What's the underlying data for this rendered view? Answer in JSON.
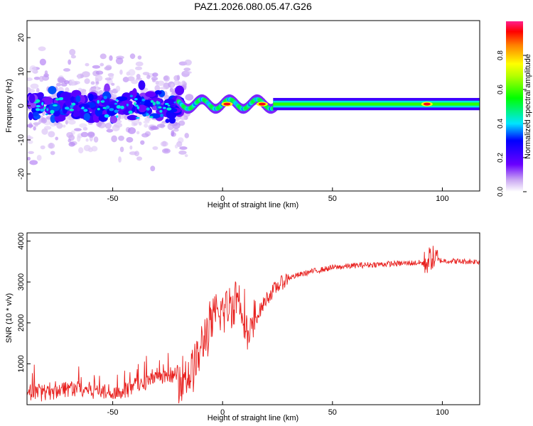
{
  "title": "PAZ1.2026.080.05.47.G26",
  "chart_data": [
    {
      "type": "heatmap",
      "xlabel": "Height of straight line (km)",
      "ylabel": "Frequency (Hz)",
      "xlim": [
        -89,
        117
      ],
      "ylim": [
        -25,
        25
      ],
      "xticks": [
        -50,
        0,
        50,
        100
      ],
      "yticks": [
        -20,
        -10,
        0,
        10,
        20
      ],
      "colorbar": {
        "label": "Normalized spectral amplitude",
        "range": [
          0,
          1
        ],
        "ticks": [
          "0.0",
          "0.2",
          "0.4",
          "0.6",
          "0.8"
        ]
      },
      "description_profile": {
        "scattered_region_x": [
          -89,
          -20
        ],
        "scattered_spread_hz": 22,
        "transition_x": [
          -20,
          25
        ],
        "stable_line_x": [
          25,
          117
        ],
        "stable_line_freq_hz": 0.5,
        "hotspots_x": [
          2,
          18,
          93
        ]
      }
    },
    {
      "type": "line",
      "xlabel": "Height of straight line (km)",
      "ylabel": "SNR (10 * v/v)",
      "xlim": [
        -89,
        117
      ],
      "ylim": [
        0,
        4200
      ],
      "xticks": [
        -50,
        0,
        50,
        100
      ],
      "yticks": [
        1000,
        2000,
        3000,
        4000
      ],
      "series": [
        {
          "name": "SNR",
          "color": "#e8211f",
          "x": [
            -89,
            -80,
            -70,
            -60,
            -50,
            -45,
            -40,
            -35,
            -30,
            -25,
            -20,
            -15,
            -10,
            -8,
            -5,
            0,
            5,
            7,
            10,
            12,
            15,
            20,
            25,
            30,
            40,
            50,
            60,
            70,
            80,
            90,
            92,
            95,
            97,
            100,
            110,
            117
          ],
          "y": [
            250,
            330,
            420,
            380,
            300,
            350,
            450,
            560,
            620,
            680,
            700,
            740,
            1300,
            1700,
            2000,
            2300,
            2500,
            2700,
            2200,
            1500,
            2100,
            2600,
            2900,
            3100,
            3250,
            3350,
            3400,
            3430,
            3450,
            3470,
            3450,
            3600,
            3550,
            3520,
            3500,
            3500
          ]
        }
      ]
    }
  ]
}
